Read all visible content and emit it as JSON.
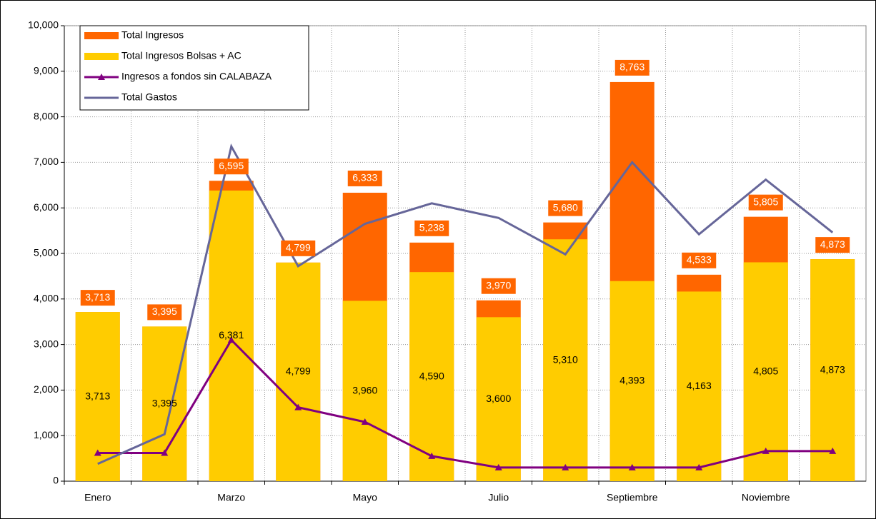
{
  "chart_data": {
    "type": "bar",
    "bar_mode": "overlap",
    "categories": [
      "Enero",
      null,
      "Marzo",
      null,
      "Mayo",
      null,
      "Julio",
      null,
      "Septiembre",
      null,
      "Noviembre",
      null
    ],
    "ylim": [
      0,
      10000
    ],
    "yticks": [
      0,
      {
        "value": 1000,
        "label": "1,000"
      },
      {
        "value": 2000,
        "label": "2,000"
      },
      {
        "value": 3000,
        "label": "3,000"
      },
      {
        "value": 4000,
        "label": "4,000"
      },
      {
        "value": 5000,
        "label": "5,000"
      },
      {
        "value": 6000,
        "label": "6,000"
      },
      {
        "value": 7000,
        "label": "7,000"
      },
      {
        "value": 8000,
        "label": "8,000"
      },
      {
        "value": 9000,
        "label": "9,000"
      },
      {
        "value": 10000,
        "label": "10,000"
      }
    ],
    "grid": true,
    "legend": "upper left",
    "series": [
      {
        "name": "Total Ingresos",
        "type": "bar",
        "color": "#ff6600",
        "label_position": "top",
        "values": [
          3713,
          3395,
          6595,
          4799,
          6333,
          5238,
          3970,
          5680,
          8763,
          4533,
          5805,
          4873
        ],
        "value_labels": [
          "3,713",
          "3,395",
          "6,595",
          "4,799",
          "6,333",
          "5,238",
          "3,970",
          "5,680",
          "8,763",
          "4,533",
          "5,805",
          "4,873"
        ]
      },
      {
        "name": "Total Ingresos Bolsas + AC",
        "type": "bar",
        "color": "#ffcc00",
        "label_position": "center",
        "values": [
          3713,
          3395,
          6381,
          4799,
          3960,
          4590,
          3600,
          5310,
          4393,
          4163,
          4805,
          4873
        ],
        "value_labels": [
          "3,713",
          "3,395",
          "6,381",
          "4,799",
          "3,960",
          "4,590",
          "3,600",
          "5,310",
          "4,393",
          "4,163",
          "4,805",
          "4,873"
        ]
      },
      {
        "name": "Ingresos a fondos sin CALABAZA",
        "type": "line",
        "color": "#800080",
        "marker": "triangle",
        "values": [
          620,
          620,
          3100,
          1620,
          1300,
          550,
          300,
          300,
          300,
          300,
          660,
          660
        ]
      },
      {
        "name": "Total Gastos",
        "type": "line",
        "color": "#666699",
        "marker": null,
        "values": [
          380,
          1030,
          7350,
          4720,
          5650,
          6100,
          5780,
          4980,
          7000,
          5420,
          6620,
          5460
        ]
      }
    ]
  }
}
